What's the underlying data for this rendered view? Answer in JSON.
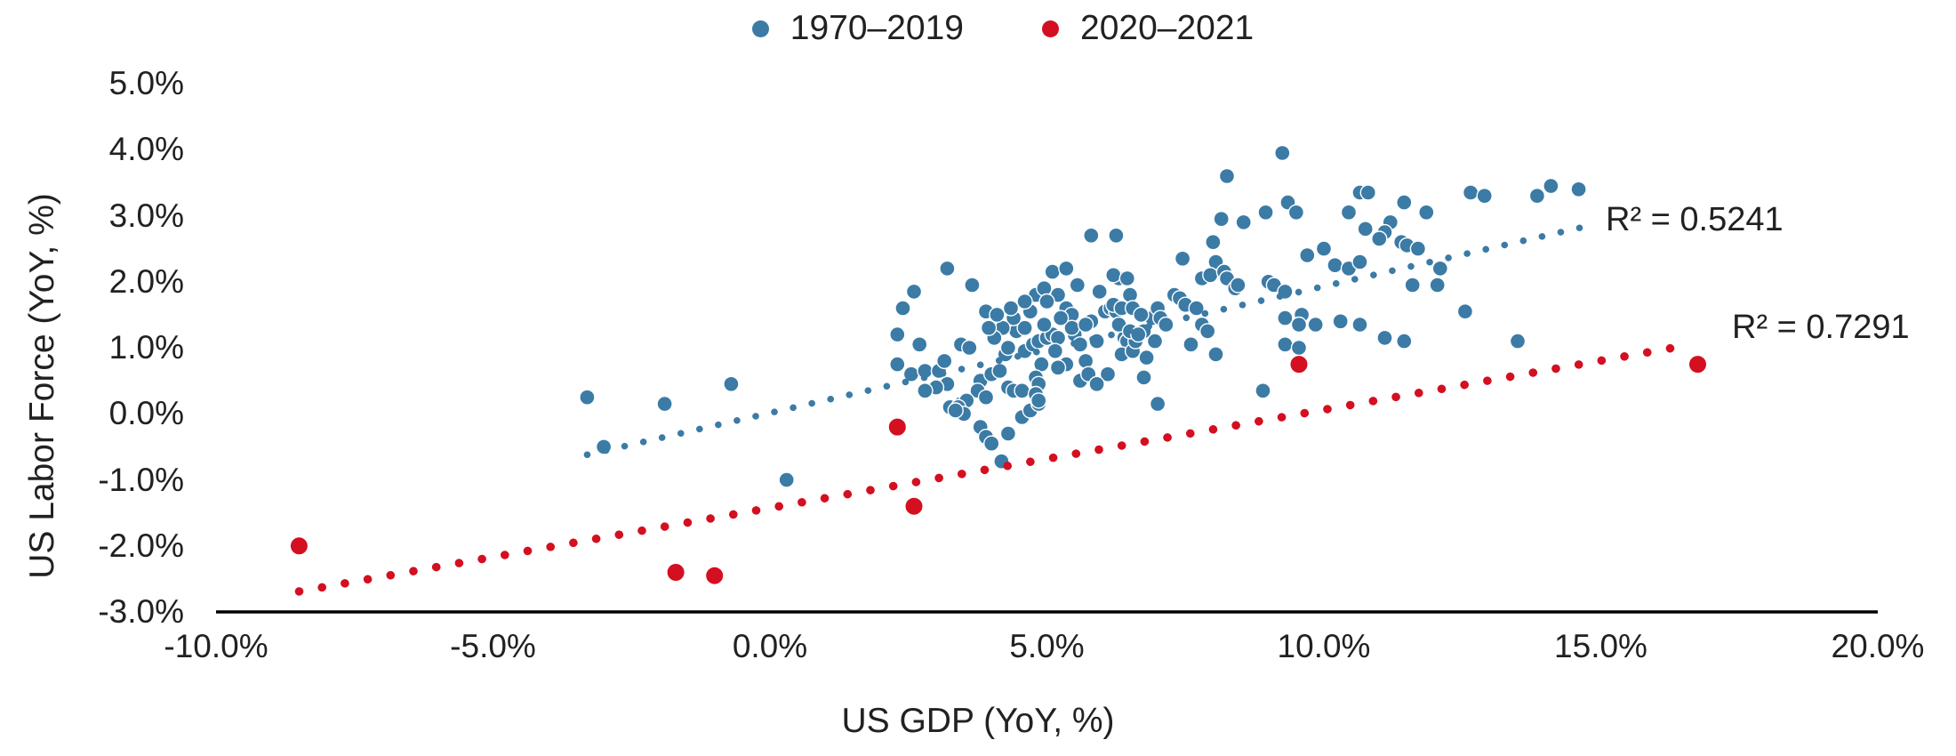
{
  "legend": {
    "items": [
      {
        "label": "1970–2019",
        "color": "#3B7BA6"
      },
      {
        "label": "2020–2021",
        "color": "#D40F20"
      }
    ]
  },
  "annotations": {
    "r2_blue": "R² = 0.5241",
    "r2_red": "R² = 0.7291"
  },
  "colors": {
    "blue_series": "#3B7BA6",
    "red_series": "#D40F20",
    "axis_line": "#000000",
    "text": "#212121"
  },
  "chart_data": {
    "type": "scatter",
    "title": "",
    "xlabel": "US GDP (YoY, %)",
    "ylabel": "US Labor Force (YoY, %)",
    "xlim": [
      -10,
      20
    ],
    "ylim": [
      -3,
      5
    ],
    "grid": false,
    "legend_position": "top-center",
    "x_ticks": [
      -10,
      -5,
      0,
      5,
      10,
      15,
      20
    ],
    "x_tick_labels": [
      "-10.0%",
      "-5.0%",
      "0.0%",
      "5.0%",
      "10.0%",
      "15.0%",
      "20.0%"
    ],
    "y_ticks": [
      5,
      4,
      3,
      2,
      1,
      0,
      -1,
      -2,
      -3
    ],
    "y_tick_labels": [
      "5.0%",
      "4.0%",
      "3.0%",
      "2.0%",
      "1.0%",
      "0.0%",
      "-1.0%",
      "-2.0%",
      "-3.0%"
    ],
    "series": [
      {
        "name": "1970–2019",
        "color": "#3B7BA6",
        "marker_radius": 8.5,
        "trendline": {
          "style": "dotted",
          "x1": -3.3,
          "y1": -0.62,
          "x2": 14.85,
          "y2": 2.86,
          "r2": 0.5241,
          "r2_label": "R² = 0.5241"
        },
        "points": [
          [
            -3.3,
            0.25
          ],
          [
            -3.0,
            -0.5
          ],
          [
            -1.9,
            0.15
          ],
          [
            -0.7,
            0.45
          ],
          [
            0.3,
            -1.0
          ],
          [
            3.25,
            0.1
          ],
          [
            3.45,
            0.15
          ],
          [
            3.8,
            -0.2
          ],
          [
            3.9,
            -0.35
          ],
          [
            4.0,
            -0.45
          ],
          [
            4.3,
            -0.3
          ],
          [
            4.55,
            -0.05
          ],
          [
            4.7,
            0.05
          ],
          [
            4.18,
            -0.72
          ],
          [
            4.85,
            0.15
          ],
          [
            3.2,
            2.2
          ],
          [
            3.65,
            1.95
          ],
          [
            2.6,
            1.85
          ],
          [
            2.4,
            1.6
          ],
          [
            3.9,
            1.55
          ],
          [
            2.3,
            1.2
          ],
          [
            2.7,
            1.05
          ],
          [
            2.3,
            0.75
          ],
          [
            2.55,
            0.6
          ],
          [
            2.8,
            0.65
          ],
          [
            3.05,
            0.65
          ],
          [
            3.15,
            0.8
          ],
          [
            3.2,
            0.45
          ],
          [
            3.0,
            0.4
          ],
          [
            2.8,
            0.35
          ],
          [
            3.45,
            1.05
          ],
          [
            3.6,
            1.0
          ],
          [
            3.8,
            0.5
          ],
          [
            4.0,
            0.6
          ],
          [
            4.15,
            0.65
          ],
          [
            3.75,
            0.35
          ],
          [
            3.9,
            0.25
          ],
          [
            3.55,
            0.2
          ],
          [
            3.4,
            0.1
          ],
          [
            3.5,
            0.0
          ],
          [
            3.35,
            0.05
          ],
          [
            4.3,
            0.4
          ],
          [
            4.4,
            0.35
          ],
          [
            4.55,
            0.35
          ],
          [
            4.25,
            0.9
          ],
          [
            4.3,
            1.0
          ],
          [
            4.6,
            0.95
          ],
          [
            4.75,
            1.05
          ],
          [
            4.85,
            1.1
          ],
          [
            4.7,
            1.55
          ],
          [
            4.8,
            1.8
          ],
          [
            4.95,
            1.9
          ],
          [
            5.1,
            2.15
          ],
          [
            5.35,
            2.2
          ],
          [
            5.2,
            1.8
          ],
          [
            5.35,
            1.6
          ],
          [
            5.45,
            1.5
          ],
          [
            5.0,
            1.15
          ],
          [
            5.1,
            1.2
          ],
          [
            5.2,
            1.15
          ],
          [
            4.9,
            0.75
          ],
          [
            4.8,
            0.55
          ],
          [
            4.85,
            0.45
          ],
          [
            4.8,
            0.3
          ],
          [
            4.85,
            0.2
          ],
          [
            5.35,
            0.75
          ],
          [
            5.2,
            0.7
          ],
          [
            5.7,
            0.8
          ],
          [
            5.8,
            1.4
          ],
          [
            6.05,
            1.55
          ],
          [
            6.15,
            1.6
          ],
          [
            6.25,
            1.55
          ],
          [
            5.8,
            2.7
          ],
          [
            6.25,
            2.7
          ],
          [
            6.4,
            2.05
          ],
          [
            6.3,
            2.05
          ],
          [
            6.4,
            1.15
          ],
          [
            6.45,
            1.1
          ],
          [
            6.35,
            0.9
          ],
          [
            6.55,
            0.95
          ],
          [
            5.95,
            1.85
          ],
          [
            6.5,
            1.8
          ],
          [
            6.9,
            1.45
          ],
          [
            6.6,
            1.1
          ],
          [
            6.95,
            1.1
          ],
          [
            6.75,
            1.25
          ],
          [
            9.25,
            3.95
          ],
          [
            8.25,
            3.6
          ],
          [
            10.65,
            3.35
          ],
          [
            10.8,
            3.35
          ],
          [
            11.45,
            3.2
          ],
          [
            12.65,
            3.35
          ],
          [
            12.9,
            3.3
          ],
          [
            13.85,
            3.3
          ],
          [
            14.1,
            3.45
          ],
          [
            14.6,
            3.4
          ],
          [
            9.35,
            3.2
          ],
          [
            9.5,
            3.05
          ],
          [
            8.95,
            3.05
          ],
          [
            8.15,
            2.95
          ],
          [
            8.55,
            2.9
          ],
          [
            10.45,
            3.05
          ],
          [
            11.2,
            2.9
          ],
          [
            11.1,
            2.75
          ],
          [
            10.75,
            2.8
          ],
          [
            11.0,
            2.65
          ],
          [
            11.85,
            3.05
          ],
          [
            11.4,
            2.6
          ],
          [
            11.5,
            2.55
          ],
          [
            11.7,
            2.5
          ],
          [
            8.0,
            2.6
          ],
          [
            8.05,
            2.3
          ],
          [
            7.45,
            2.35
          ],
          [
            6.2,
            2.1
          ],
          [
            6.45,
            2.05
          ],
          [
            7.8,
            2.05
          ],
          [
            7.95,
            2.1
          ],
          [
            8.2,
            2.15
          ],
          [
            8.25,
            2.05
          ],
          [
            8.4,
            1.9
          ],
          [
            8.45,
            1.95
          ],
          [
            9.0,
            2.0
          ],
          [
            9.1,
            1.95
          ],
          [
            9.3,
            1.85
          ],
          [
            9.7,
            2.4
          ],
          [
            10.0,
            2.5
          ],
          [
            10.2,
            2.25
          ],
          [
            10.45,
            2.2
          ],
          [
            10.65,
            2.3
          ],
          [
            11.6,
            1.95
          ],
          [
            12.1,
            2.2
          ],
          [
            12.05,
            1.95
          ],
          [
            12.55,
            1.55
          ],
          [
            7.3,
            1.8
          ],
          [
            7.4,
            1.75
          ],
          [
            7.5,
            1.65
          ],
          [
            7.7,
            1.6
          ],
          [
            7.0,
            1.6
          ],
          [
            7.05,
            1.45
          ],
          [
            7.15,
            1.35
          ],
          [
            6.2,
            1.65
          ],
          [
            6.35,
            1.6
          ],
          [
            6.55,
            1.6
          ],
          [
            6.7,
            1.5
          ],
          [
            6.3,
            1.35
          ],
          [
            6.5,
            1.25
          ],
          [
            6.65,
            1.2
          ],
          [
            7.8,
            1.35
          ],
          [
            7.9,
            1.25
          ],
          [
            9.3,
            1.45
          ],
          [
            9.6,
            1.5
          ],
          [
            10.3,
            1.4
          ],
          [
            11.1,
            1.15
          ],
          [
            9.3,
            1.05
          ],
          [
            13.5,
            1.1
          ],
          [
            9.55,
            1.35
          ],
          [
            9.85,
            1.35
          ],
          [
            10.65,
            1.35
          ],
          [
            11.45,
            1.1
          ],
          [
            9.55,
            1.0
          ],
          [
            6.75,
            0.55
          ],
          [
            7.0,
            0.15
          ],
          [
            8.9,
            0.35
          ],
          [
            7.6,
            1.05
          ],
          [
            8.05,
            0.9
          ],
          [
            4.45,
            1.25
          ],
          [
            4.6,
            1.3
          ],
          [
            5.5,
            1.2
          ],
          [
            5.6,
            1.05
          ],
          [
            5.9,
            1.1
          ],
          [
            5.15,
            0.95
          ],
          [
            5.45,
            1.3
          ],
          [
            5.7,
            1.35
          ],
          [
            4.95,
            1.35
          ],
          [
            5.25,
            1.45
          ],
          [
            6.1,
            0.6
          ],
          [
            6.8,
            0.85
          ],
          [
            5.55,
            1.95
          ],
          [
            5.0,
            1.7
          ],
          [
            4.6,
            1.7
          ],
          [
            4.4,
            1.45
          ],
          [
            4.2,
            1.3
          ],
          [
            4.05,
            1.15
          ],
          [
            3.95,
            1.3
          ],
          [
            4.1,
            1.5
          ],
          [
            4.35,
            1.6
          ],
          [
            5.6,
            0.5
          ],
          [
            5.75,
            0.6
          ],
          [
            5.9,
            0.45
          ]
        ]
      },
      {
        "name": "2020–2021",
        "color": "#D40F20",
        "marker_radius": 10,
        "trendline": {
          "style": "dotted",
          "x1": -8.5,
          "y1": -2.69,
          "x2": 16.65,
          "y2": 1.05,
          "r2": 0.7291,
          "r2_label": "R² = 0.7291"
        },
        "points": [
          [
            -8.5,
            -2.0
          ],
          [
            -1.7,
            -2.4
          ],
          [
            -1.0,
            -2.45
          ],
          [
            2.3,
            -0.2
          ],
          [
            2.6,
            -1.4
          ],
          [
            9.55,
            0.75
          ],
          [
            16.75,
            0.75
          ]
        ]
      }
    ]
  }
}
